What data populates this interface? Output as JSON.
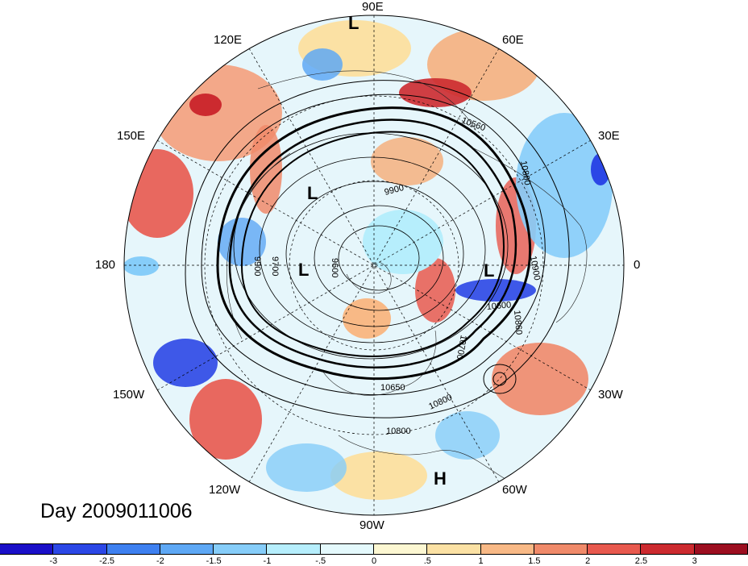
{
  "title": "Day 2009011006",
  "longitude_labels": {
    "lon_90e": "90E",
    "lon_60e": "60E",
    "lon_120e": "120E",
    "lon_30e": "30E",
    "lon_150e": "150E",
    "lon_0": "0",
    "lon_180": "180",
    "lon_30w": "30W",
    "lon_150w": "150W",
    "lon_60w": "60W",
    "lon_120w": "120W",
    "lon_90w": "90W"
  },
  "pressure_centers": [
    {
      "type": "L"
    },
    {
      "type": "L"
    },
    {
      "type": "L"
    },
    {
      "type": "L"
    },
    {
      "type": "H"
    }
  ],
  "contour_labels": [
    "10560",
    "10800",
    "9900",
    "9700",
    "9900",
    "9600",
    "10600",
    "10900",
    "10700",
    "10860",
    "10800",
    "10650",
    "10800",
    "10800"
  ],
  "colorbar": {
    "colors": [
      "#1a0fc8",
      "#2b47e6",
      "#3e80f0",
      "#5ea8f5",
      "#86cdf9",
      "#b6eefc",
      "#e4f9fc",
      "#fcf7d2",
      "#fbe1a4",
      "#f8b986",
      "#f08a6a",
      "#e8594e",
      "#cc2a2f",
      "#9c0e20"
    ],
    "tick_labels": [
      "-3",
      "-2.5",
      "-2",
      "-1.5",
      "-1",
      "-.5",
      "0",
      ".5",
      "1",
      "1.5",
      "2",
      "2.5",
      "3"
    ]
  }
}
